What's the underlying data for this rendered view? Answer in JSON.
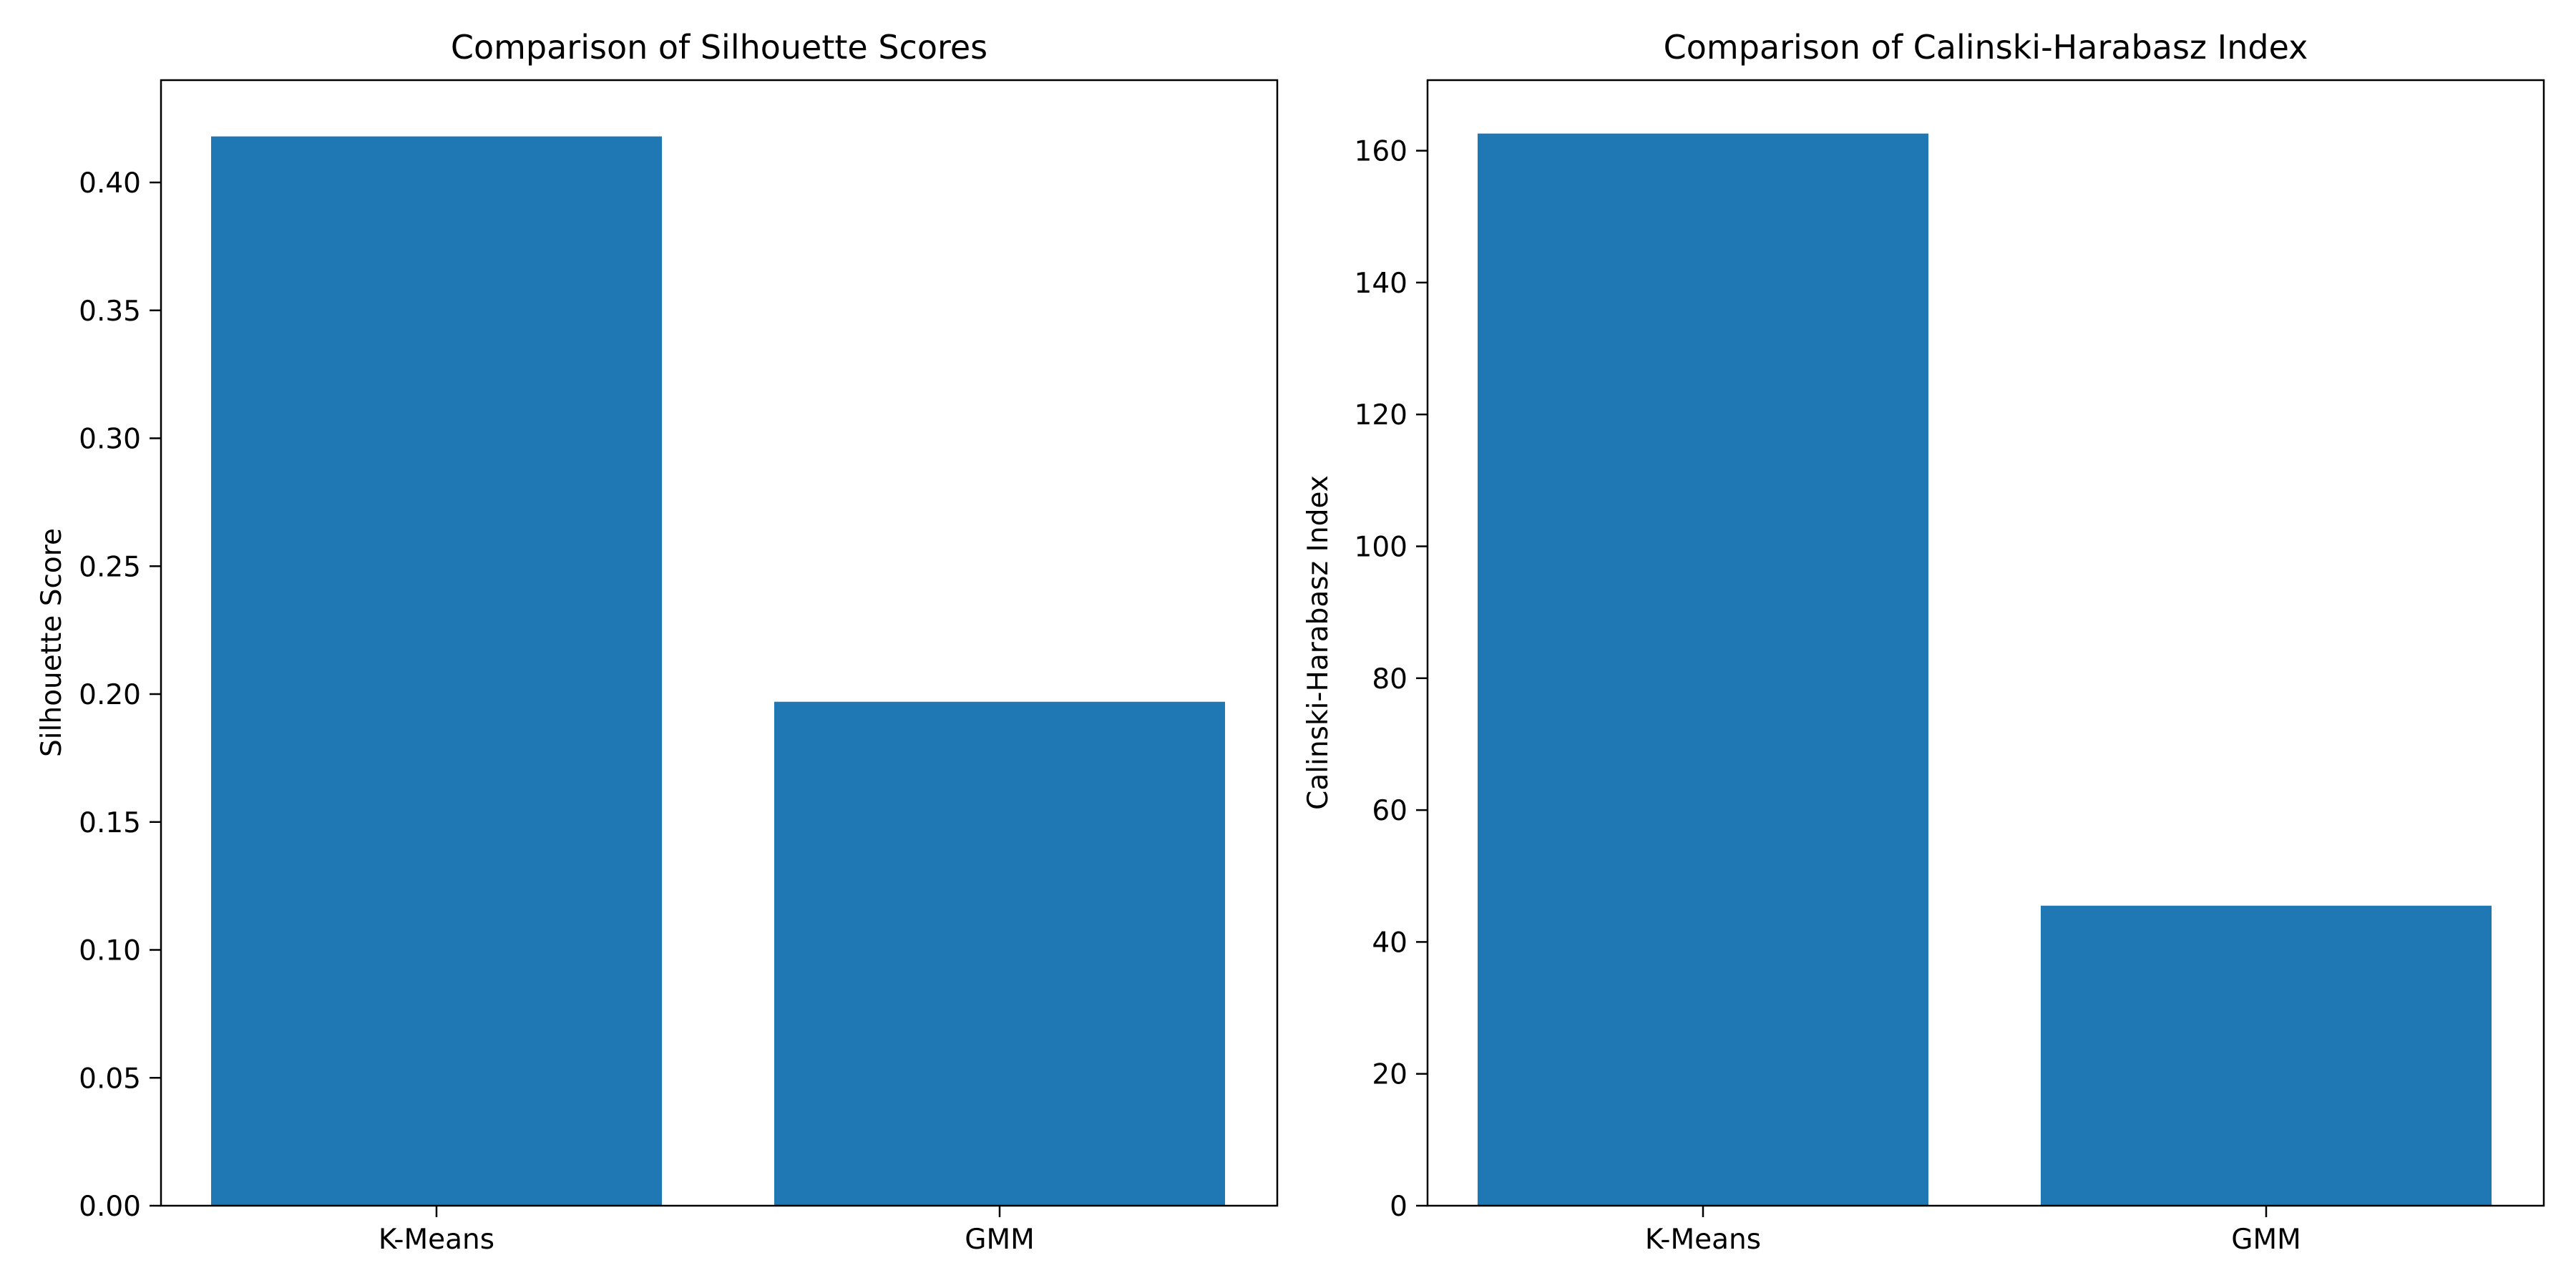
{
  "chart_data": [
    {
      "type": "bar",
      "title": "Comparison of Silhouette Scores",
      "xlabel": "",
      "ylabel": "Silhouette Score",
      "categories": [
        "K-Means",
        "GMM"
      ],
      "values": [
        0.418,
        0.197
      ],
      "ylim": [
        0,
        0.44
      ],
      "yticks": [
        0.0,
        0.05,
        0.1,
        0.15,
        0.2,
        0.25,
        0.3,
        0.35,
        0.4
      ],
      "ytick_labels": [
        "0.00",
        "0.05",
        "0.10",
        "0.15",
        "0.20",
        "0.25",
        "0.30",
        "0.35",
        "0.40"
      ],
      "grid": false,
      "bar_color": "#1f77b4"
    },
    {
      "type": "bar",
      "title": "Comparison of Calinski-Harabasz Index",
      "xlabel": "",
      "ylabel": "Calinski-Harabasz Index",
      "categories": [
        "K-Means",
        "GMM"
      ],
      "values": [
        162.6,
        45.5
      ],
      "ylim": [
        0,
        170.7
      ],
      "yticks": [
        0,
        20,
        40,
        60,
        80,
        100,
        120,
        140,
        160
      ],
      "ytick_labels": [
        "0",
        "20",
        "40",
        "60",
        "80",
        "100",
        "120",
        "140",
        "160"
      ],
      "grid": false,
      "bar_color": "#1f77b4"
    }
  ]
}
